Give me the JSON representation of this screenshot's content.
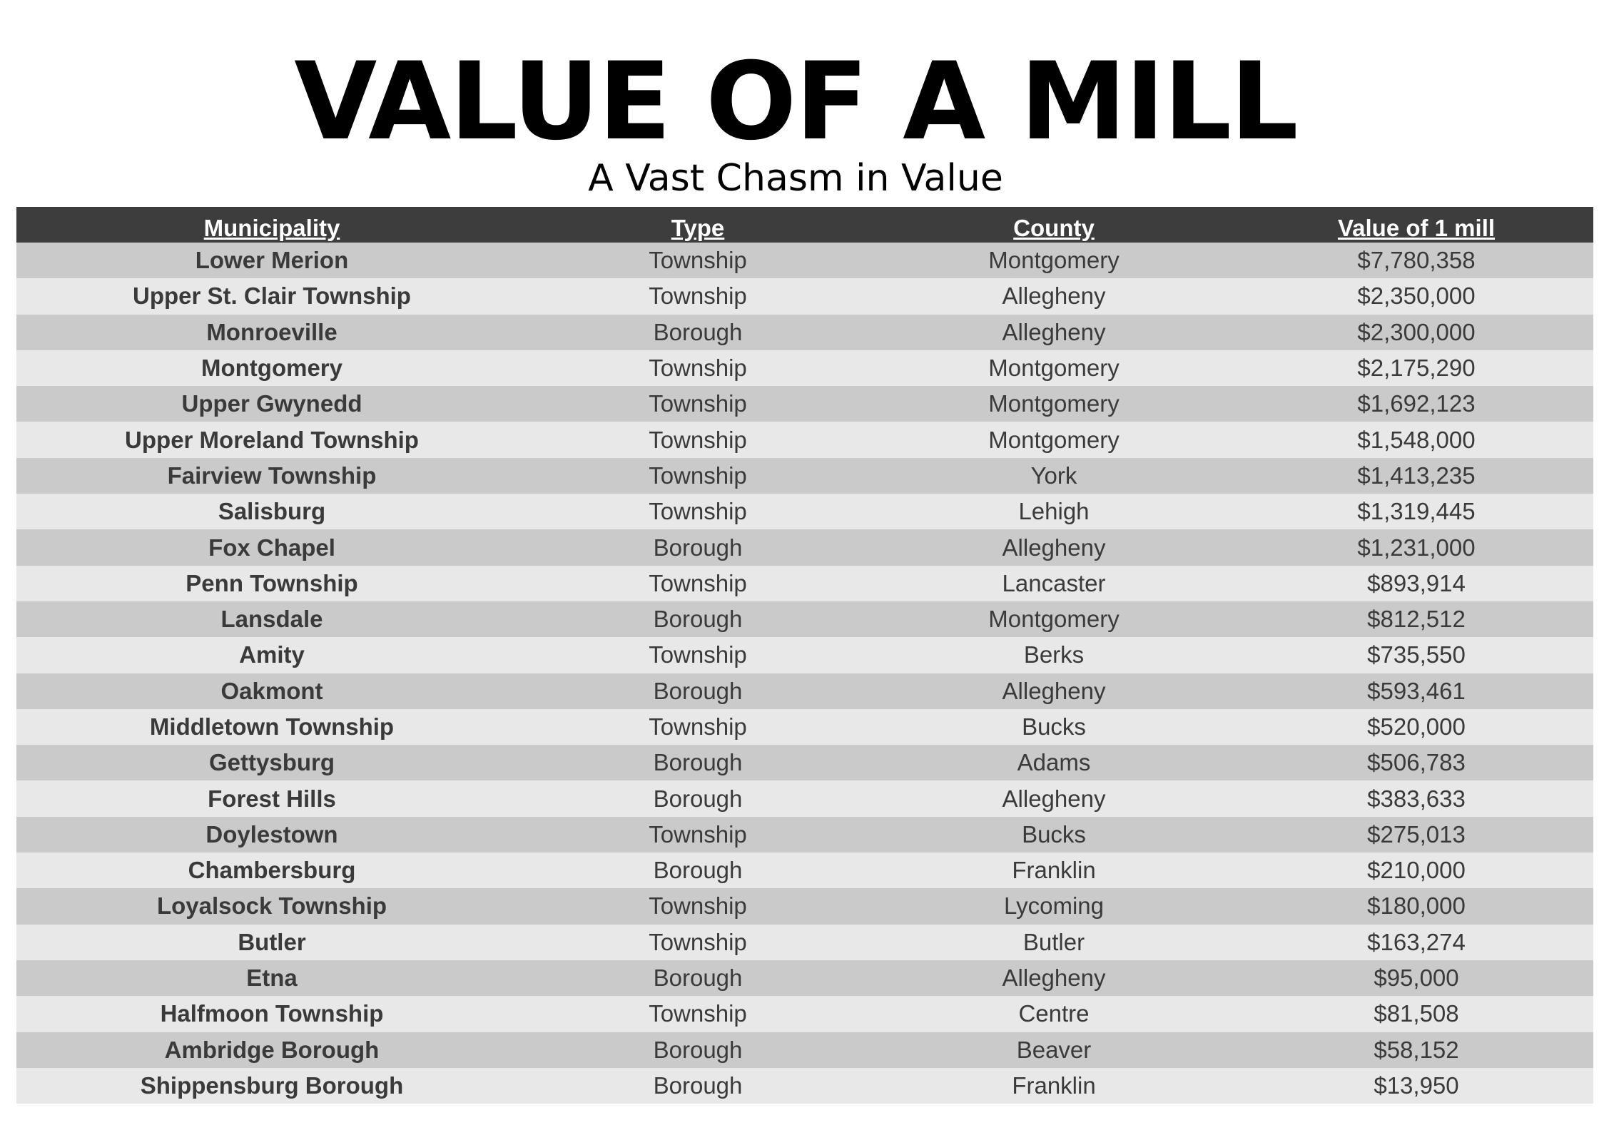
{
  "title": "VALUE OF A MILL",
  "subtitle": "A Vast Chasm in Value",
  "table": {
    "headers": [
      "Municipality",
      "Type",
      "County",
      "Value of 1 mill"
    ],
    "rows": [
      {
        "municipality": "Lower Merion",
        "type": "Township",
        "county": "Montgomery",
        "value": "$7,780,358"
      },
      {
        "municipality": "Upper St. Clair Township",
        "type": "Township",
        "county": "Allegheny",
        "value": "$2,350,000"
      },
      {
        "municipality": "Monroeville",
        "type": "Borough",
        "county": "Allegheny",
        "value": "$2,300,000"
      },
      {
        "municipality": "Montgomery",
        "type": "Township",
        "county": "Montgomery",
        "value": "$2,175,290"
      },
      {
        "municipality": "Upper Gwynedd",
        "type": "Township",
        "county": "Montgomery",
        "value": "$1,692,123"
      },
      {
        "municipality": "Upper Moreland Township",
        "type": "Township",
        "county": "Montgomery",
        "value": "$1,548,000"
      },
      {
        "municipality": "Fairview Township",
        "type": "Township",
        "county": "York",
        "value": "$1,413,235"
      },
      {
        "municipality": "Salisburg",
        "type": "Township",
        "county": "Lehigh",
        "value": "$1,319,445"
      },
      {
        "municipality": "Fox Chapel",
        "type": "Borough",
        "county": "Allegheny",
        "value": "$1,231,000"
      },
      {
        "municipality": "Penn Township",
        "type": "Township",
        "county": "Lancaster",
        "value": "$893,914"
      },
      {
        "municipality": "Lansdale",
        "type": "Borough",
        "county": "Montgomery",
        "value": "$812,512"
      },
      {
        "municipality": "Amity",
        "type": "Township",
        "county": "Berks",
        "value": "$735,550"
      },
      {
        "municipality": "Oakmont",
        "type": "Borough",
        "county": "Allegheny",
        "value": "$593,461"
      },
      {
        "municipality": "Middletown Township",
        "type": "Township",
        "county": "Bucks",
        "value": "$520,000"
      },
      {
        "municipality": "Gettysburg",
        "type": "Borough",
        "county": "Adams",
        "value": "$506,783"
      },
      {
        "municipality": "Forest Hills",
        "type": "Borough",
        "county": "Allegheny",
        "value": "$383,633"
      },
      {
        "municipality": "Doylestown",
        "type": "Township",
        "county": "Bucks",
        "value": "$275,013"
      },
      {
        "municipality": "Chambersburg",
        "type": "Borough",
        "county": "Franklin",
        "value": "$210,000"
      },
      {
        "municipality": "Loyalsock Township",
        "type": "Township",
        "county": "Lycoming",
        "value": "$180,000"
      },
      {
        "municipality": "Butler",
        "type": "Township",
        "county": "Butler",
        "value": "$163,274"
      },
      {
        "municipality": "Etna",
        "type": "Borough",
        "county": "Allegheny",
        "value": "$95,000"
      },
      {
        "municipality": "Halfmoon Township",
        "type": "Township",
        "county": "Centre",
        "value": "$81,508"
      },
      {
        "municipality": "Ambridge Borough",
        "type": "Borough",
        "county": "Beaver",
        "value": "$58,152"
      },
      {
        "municipality": "Shippensburg Borough",
        "type": "Borough",
        "county": "Franklin",
        "value": "$13,950"
      }
    ]
  }
}
